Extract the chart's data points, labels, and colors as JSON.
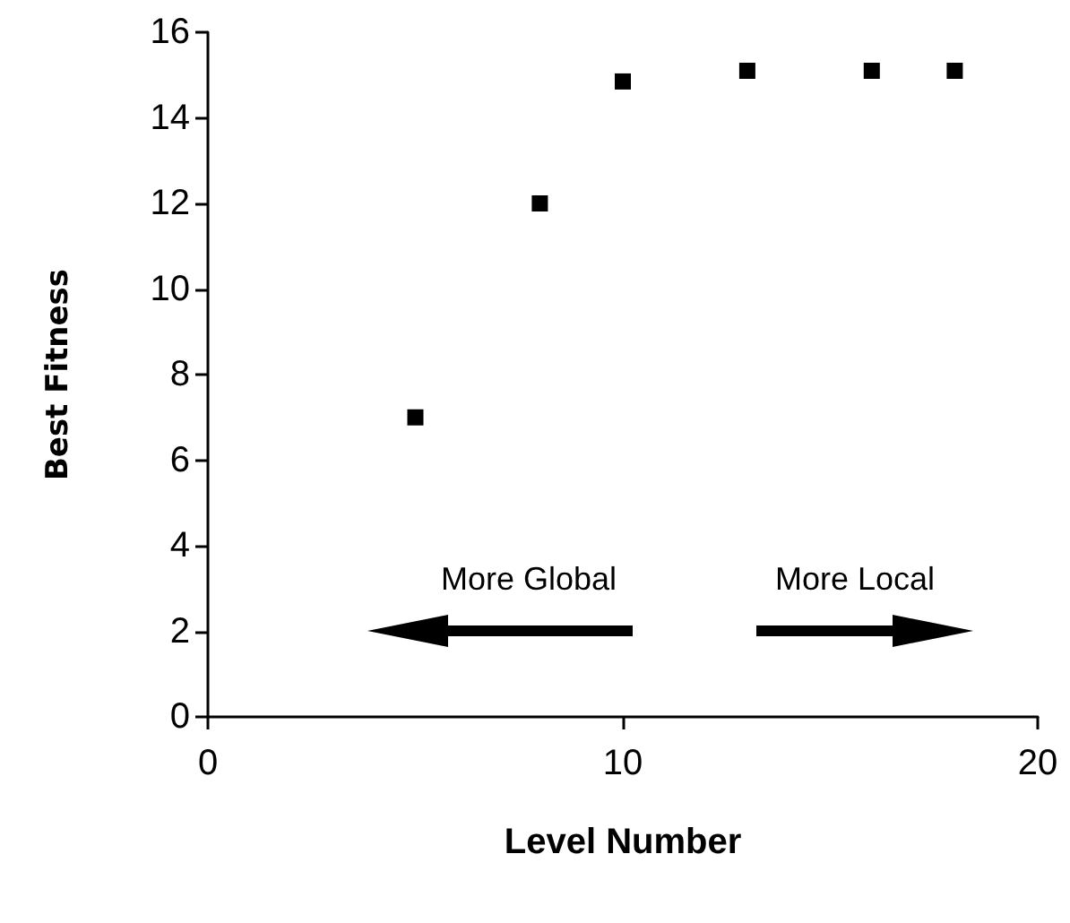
{
  "chart_data": {
    "type": "scatter",
    "xlabel": "Level Number",
    "ylabel": "Best Fitness",
    "x": [
      5,
      8,
      10,
      13,
      16,
      18
    ],
    "values": [
      7,
      12,
      14.85,
      15.1,
      15.1,
      15.1
    ],
    "color": "#000000",
    "marker": "square",
    "xlim": [
      0,
      20
    ],
    "xticks": [
      0,
      10,
      20
    ],
    "ylim": [
      0,
      16
    ],
    "yticks": [
      0,
      2,
      4,
      6,
      8,
      10,
      12,
      14,
      16
    ],
    "grid": false,
    "annotations": [
      "More Global",
      "More Local"
    ]
  }
}
